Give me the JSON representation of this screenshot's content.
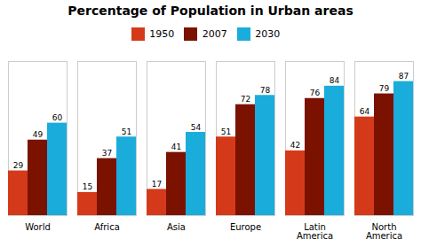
{
  "chart_data": {
    "type": "bar",
    "title": "Percentage of Population in Urban areas",
    "categories": [
      "World",
      "Africa",
      "Asia",
      "Europe",
      "Latin\nAmerica",
      "North\nAmerica"
    ],
    "series": [
      {
        "name": "1950",
        "color": "#D43A1A",
        "values": [
          29,
          15,
          17,
          51,
          42,
          64
        ]
      },
      {
        "name": "2007",
        "color": "#7B1200",
        "values": [
          49,
          37,
          41,
          72,
          76,
          79
        ]
      },
      {
        "name": "2030",
        "color": "#1AACDB",
        "values": [
          60,
          51,
          54,
          78,
          84,
          87
        ]
      }
    ],
    "ylim": [
      0,
      100
    ],
    "grid": false,
    "legend": "top",
    "data_labels": true,
    "tick_labels": "x"
  }
}
